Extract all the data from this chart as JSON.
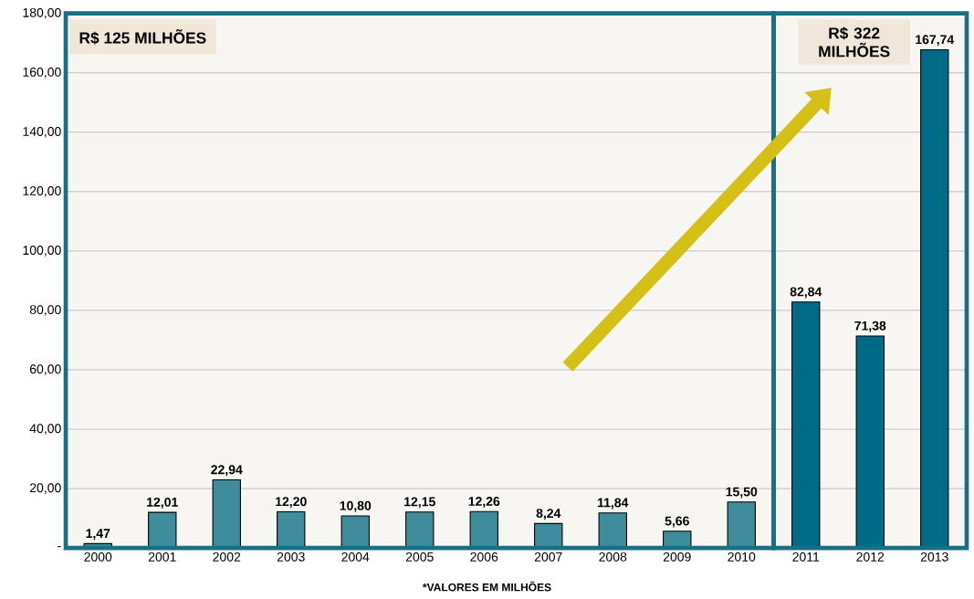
{
  "chart_data": {
    "type": "bar",
    "categories": [
      "2000",
      "2001",
      "2002",
      "2003",
      "2004",
      "2005",
      "2006",
      "2007",
      "2008",
      "2009",
      "2010",
      "2011",
      "2012",
      "2013"
    ],
    "values": [
      1.47,
      12.01,
      22.94,
      12.2,
      10.8,
      12.15,
      12.26,
      8.24,
      11.84,
      5.66,
      15.5,
      82.84,
      71.38,
      167.74
    ],
    "value_labels": [
      "1,47",
      "12,01",
      "22,94",
      "12,20",
      "10,80",
      "12,15",
      "12,26",
      "8,24",
      "11,84",
      "5,66",
      "15,50",
      "82,84",
      "71,38",
      "167,74"
    ],
    "colors": [
      "#3f8c9c",
      "#3f8c9c",
      "#3f8c9c",
      "#3f8c9c",
      "#3f8c9c",
      "#3f8c9c",
      "#3f8c9c",
      "#3f8c9c",
      "#3f8c9c",
      "#3f8c9c",
      "#3f8c9c",
      "#006b86",
      "#006b86",
      "#006b86"
    ],
    "ylim": [
      0,
      180
    ],
    "yticks": [
      {
        "value": 0,
        "label": "-"
      },
      {
        "value": 20,
        "label": "20,00"
      },
      {
        "value": 40,
        "label": "40,00"
      },
      {
        "value": 60,
        "label": "60,00"
      },
      {
        "value": 80,
        "label": "80,00"
      },
      {
        "value": 100,
        "label": "100,00"
      },
      {
        "value": 120,
        "label": "120,00"
      },
      {
        "value": 140,
        "label": "140,00"
      },
      {
        "value": 160,
        "label": "160,00"
      },
      {
        "value": 180,
        "label": "180,00"
      }
    ],
    "grid": "y",
    "annotations": [
      "R$ 125 MILHÕES",
      "R$ 322 MILHÕES",
      "*VALORES EM MILHÕES"
    ]
  }
}
